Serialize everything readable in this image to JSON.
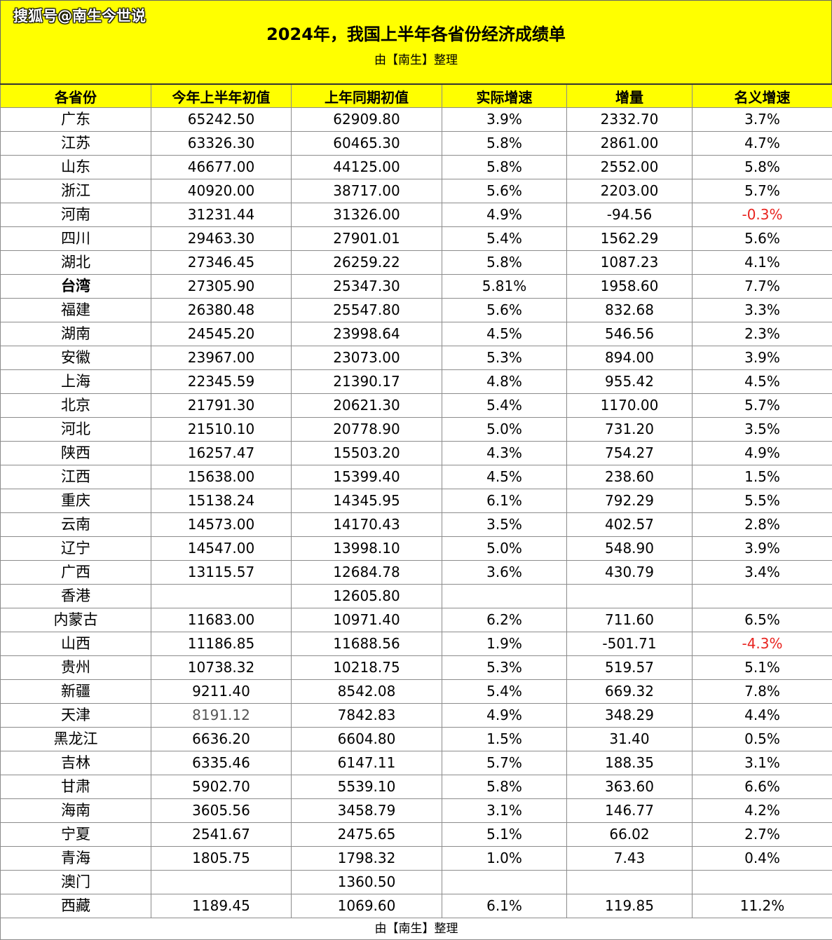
{
  "watermark": "搜狐号@南生今世说",
  "title": "2024年，我国上半年各省份经济成绩单",
  "subtitle": "由【南生】整理",
  "footer": "由【南生】整理",
  "colors": {
    "header_bg": "#ffff00",
    "negative": "#e8231f"
  },
  "columns": [
    "各省份",
    "今年上半年初值",
    "上年同期初值",
    "实际增速",
    "增量",
    "名义增速"
  ],
  "rows": [
    {
      "province": "广东",
      "current": "65242.50",
      "previous": "62909.80",
      "real_growth": "3.9%",
      "increase": "2332.70",
      "nominal_growth": "3.7%"
    },
    {
      "province": "江苏",
      "current": "63326.30",
      "previous": "60465.30",
      "real_growth": "5.8%",
      "increase": "2861.00",
      "nominal_growth": "4.7%"
    },
    {
      "province": "山东",
      "current": "46677.00",
      "previous": "44125.00",
      "real_growth": "5.8%",
      "increase": "2552.00",
      "nominal_growth": "5.8%"
    },
    {
      "province": "浙江",
      "current": "40920.00",
      "previous": "38717.00",
      "real_growth": "5.6%",
      "increase": "2203.00",
      "nominal_growth": "5.7%"
    },
    {
      "province": "河南",
      "current": "31231.44",
      "previous": "31326.00",
      "real_growth": "4.9%",
      "increase": "-94.56",
      "nominal_growth": "-0.3%",
      "nominal_negative": true
    },
    {
      "province": "四川",
      "current": "29463.30",
      "previous": "27901.01",
      "real_growth": "5.4%",
      "increase": "1562.29",
      "nominal_growth": "5.6%"
    },
    {
      "province": "湖北",
      "current": "27346.45",
      "previous": "26259.22",
      "real_growth": "5.8%",
      "increase": "1087.23",
      "nominal_growth": "4.1%"
    },
    {
      "province": "台湾",
      "current": "27305.90",
      "previous": "25347.30",
      "real_growth": "5.81%",
      "increase": "1958.60",
      "nominal_growth": "7.7%",
      "bold": true
    },
    {
      "province": "福建",
      "current": "26380.48",
      "previous": "25547.80",
      "real_growth": "5.6%",
      "increase": "832.68",
      "nominal_growth": "3.3%"
    },
    {
      "province": "湖南",
      "current": "24545.20",
      "previous": "23998.64",
      "real_growth": "4.5%",
      "increase": "546.56",
      "nominal_growth": "2.3%"
    },
    {
      "province": "安徽",
      "current": "23967.00",
      "previous": "23073.00",
      "real_growth": "5.3%",
      "increase": "894.00",
      "nominal_growth": "3.9%"
    },
    {
      "province": "上海",
      "current": "22345.59",
      "previous": "21390.17",
      "real_growth": "4.8%",
      "increase": "955.42",
      "nominal_growth": "4.5%"
    },
    {
      "province": "北京",
      "current": "21791.30",
      "previous": "20621.30",
      "real_growth": "5.4%",
      "increase": "1170.00",
      "nominal_growth": "5.7%"
    },
    {
      "province": "河北",
      "current": "21510.10",
      "previous": "20778.90",
      "real_growth": "5.0%",
      "increase": "731.20",
      "nominal_growth": "3.5%"
    },
    {
      "province": "陕西",
      "current": "16257.47",
      "previous": "15503.20",
      "real_growth": "4.3%",
      "increase": "754.27",
      "nominal_growth": "4.9%"
    },
    {
      "province": "江西",
      "current": "15638.00",
      "previous": "15399.40",
      "real_growth": "4.5%",
      "increase": "238.60",
      "nominal_growth": "1.5%"
    },
    {
      "province": "重庆",
      "current": "15138.24",
      "previous": "14345.95",
      "real_growth": "6.1%",
      "increase": "792.29",
      "nominal_growth": "5.5%"
    },
    {
      "province": "云南",
      "current": "14573.00",
      "previous": "14170.43",
      "real_growth": "3.5%",
      "increase": "402.57",
      "nominal_growth": "2.8%"
    },
    {
      "province": "辽宁",
      "current": "14547.00",
      "previous": "13998.10",
      "real_growth": "5.0%",
      "increase": "548.90",
      "nominal_growth": "3.9%"
    },
    {
      "province": "广西",
      "current": "13115.57",
      "previous": "12684.78",
      "real_growth": "3.6%",
      "increase": "430.79",
      "nominal_growth": "3.4%"
    },
    {
      "province": "香港",
      "current": "",
      "previous": "12605.80",
      "real_growth": "",
      "increase": "",
      "nominal_growth": ""
    },
    {
      "province": "内蒙古",
      "current": "11683.00",
      "previous": "10971.40",
      "real_growth": "6.2%",
      "increase": "711.60",
      "nominal_growth": "6.5%"
    },
    {
      "province": "山西",
      "current": "11186.85",
      "previous": "11688.56",
      "real_growth": "1.9%",
      "increase": "-501.71",
      "nominal_growth": "-4.3%",
      "nominal_negative": true
    },
    {
      "province": "贵州",
      "current": "10738.32",
      "previous": "10218.75",
      "real_growth": "5.3%",
      "increase": "519.57",
      "nominal_growth": "5.1%"
    },
    {
      "province": "新疆",
      "current": "9211.40",
      "previous": "8542.08",
      "real_growth": "5.4%",
      "increase": "669.32",
      "nominal_growth": "7.8%"
    },
    {
      "province": "天津",
      "current": "8191.12",
      "previous": "7842.83",
      "real_growth": "4.9%",
      "increase": "348.29",
      "nominal_growth": "4.4%",
      "current_grey": true
    },
    {
      "province": "黑龙江",
      "current": "6636.20",
      "previous": "6604.80",
      "real_growth": "1.5%",
      "increase": "31.40",
      "nominal_growth": "0.5%"
    },
    {
      "province": "吉林",
      "current": "6335.46",
      "previous": "6147.11",
      "real_growth": "5.7%",
      "increase": "188.35",
      "nominal_growth": "3.1%"
    },
    {
      "province": "甘肃",
      "current": "5902.70",
      "previous": "5539.10",
      "real_growth": "5.8%",
      "increase": "363.60",
      "nominal_growth": "6.6%"
    },
    {
      "province": "海南",
      "current": "3605.56",
      "previous": "3458.79",
      "real_growth": "3.1%",
      "increase": "146.77",
      "nominal_growth": "4.2%"
    },
    {
      "province": "宁夏",
      "current": "2541.67",
      "previous": "2475.65",
      "real_growth": "5.1%",
      "increase": "66.02",
      "nominal_growth": "2.7%"
    },
    {
      "province": "青海",
      "current": "1805.75",
      "previous": "1798.32",
      "real_growth": "1.0%",
      "increase": "7.43",
      "nominal_growth": "0.4%"
    },
    {
      "province": "澳门",
      "current": "",
      "previous": "1360.50",
      "real_growth": "",
      "increase": "",
      "nominal_growth": ""
    },
    {
      "province": "西藏",
      "current": "1189.45",
      "previous": "1069.60",
      "real_growth": "6.1%",
      "increase": "119.85",
      "nominal_growth": "11.2%"
    }
  ]
}
